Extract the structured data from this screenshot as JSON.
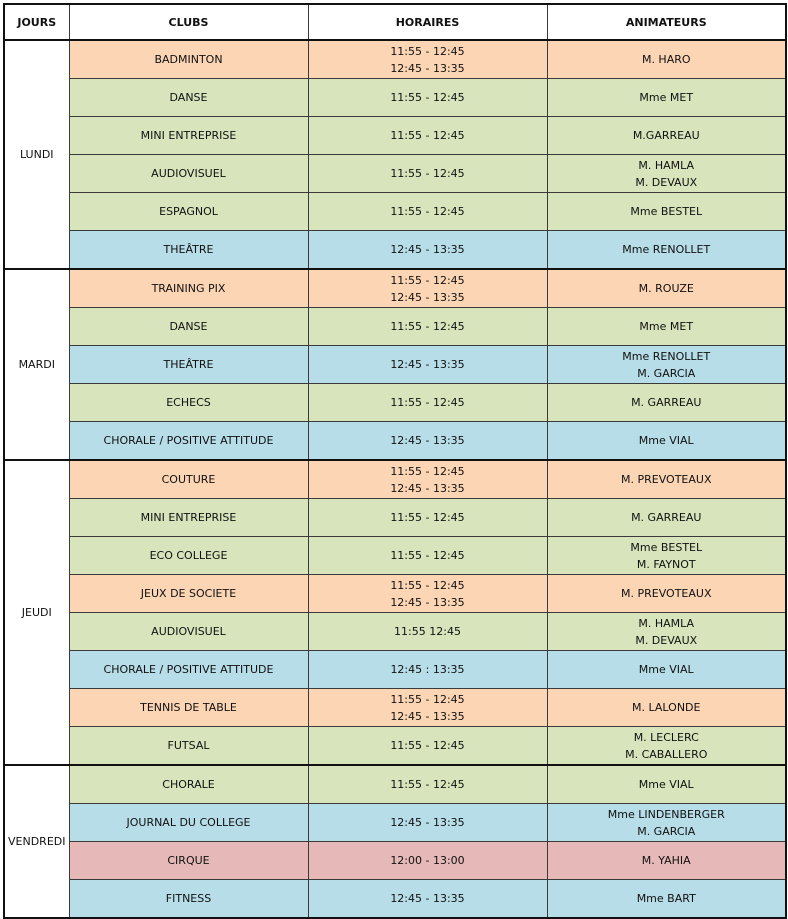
{
  "headers": {
    "jours": "JOURS",
    "clubs": "CLUBS",
    "horaires": "HORAIRES",
    "animateurs": "ANIMATEURS"
  },
  "days": [
    {
      "name": "LUNDI",
      "rows": [
        {
          "club": "BADMINTON",
          "horaires": [
            "11:55 - 12:45",
            "12:45 - 13:35"
          ],
          "animateurs": [
            "M. HARO"
          ],
          "color": "orange"
        },
        {
          "club": "DANSE",
          "horaires": [
            "11:55 - 12:45"
          ],
          "animateurs": [
            "Mme MET"
          ],
          "color": "green"
        },
        {
          "club": "MINI ENTREPRISE",
          "horaires": [
            "11:55 - 12:45"
          ],
          "animateurs": [
            "M.GARREAU"
          ],
          "color": "green"
        },
        {
          "club": "AUDIOVISUEL",
          "horaires": [
            "11:55 - 12:45"
          ],
          "animateurs": [
            "M. HAMLA",
            "M. DEVAUX"
          ],
          "color": "green"
        },
        {
          "club": "ESPAGNOL",
          "horaires": [
            "11:55 - 12:45"
          ],
          "animateurs": [
            "Mme BESTEL"
          ],
          "color": "green"
        },
        {
          "club": "THEÂTRE",
          "horaires": [
            "12:45 - 13:35"
          ],
          "animateurs": [
            "Mme RENOLLET"
          ],
          "color": "blue"
        }
      ]
    },
    {
      "name": "MARDI",
      "rows": [
        {
          "club": "TRAINING PIX",
          "horaires": [
            "11:55 - 12:45",
            "12:45 - 13:35"
          ],
          "animateurs": [
            "M. ROUZE"
          ],
          "color": "orange"
        },
        {
          "club": "DANSE",
          "horaires": [
            "11:55 - 12:45"
          ],
          "animateurs": [
            "Mme MET"
          ],
          "color": "green"
        },
        {
          "club": "THEÂTRE",
          "horaires": [
            "12:45 - 13:35"
          ],
          "animateurs": [
            "Mme RENOLLET",
            "M. GARCIA"
          ],
          "color": "blue"
        },
        {
          "club": "ECHECS",
          "horaires": [
            "11:55 - 12:45"
          ],
          "animateurs": [
            "M. GARREAU"
          ],
          "color": "green"
        },
        {
          "club": "CHORALE / POSITIVE ATTITUDE",
          "horaires": [
            "12:45 - 13:35"
          ],
          "animateurs": [
            "Mme VIAL"
          ],
          "color": "blue"
        }
      ]
    },
    {
      "name": "JEUDI",
      "rows": [
        {
          "club": "COUTURE",
          "horaires": [
            "11:55 - 12:45",
            "12:45 - 13:35"
          ],
          "animateurs": [
            "M. PREVOTEAUX"
          ],
          "color": "orange"
        },
        {
          "club": "MINI ENTREPRISE",
          "horaires": [
            "11:55 - 12:45"
          ],
          "animateurs": [
            "M. GARREAU"
          ],
          "color": "green"
        },
        {
          "club": "ECO COLLEGE",
          "horaires": [
            "11:55 - 12:45"
          ],
          "animateurs": [
            "Mme BESTEL",
            "M. FAYNOT"
          ],
          "color": "green"
        },
        {
          "club": "JEUX DE SOCIETE",
          "horaires": [
            "11:55 - 12:45",
            "12:45 - 13:35"
          ],
          "animateurs": [
            "M. PREVOTEAUX"
          ],
          "color": "orange"
        },
        {
          "club": "AUDIOVISUEL",
          "horaires": [
            "11:55  12:45"
          ],
          "animateurs": [
            "M. HAMLA",
            "M. DEVAUX"
          ],
          "color": "green"
        },
        {
          "club": "CHORALE / POSITIVE ATTITUDE",
          "horaires": [
            "12:45 : 13:35"
          ],
          "animateurs": [
            "Mme VIAL"
          ],
          "color": "blue"
        },
        {
          "club": "TENNIS DE TABLE",
          "horaires": [
            "11:55 - 12:45",
            "12:45 - 13:35"
          ],
          "animateurs": [
            "M. LALONDE"
          ],
          "color": "orange"
        },
        {
          "club": "FUTSAL",
          "horaires": [
            "11:55 - 12:45"
          ],
          "animateurs": [
            "M. LECLERC",
            "M. CABALLERO"
          ],
          "color": "green"
        }
      ]
    },
    {
      "name": "VENDREDI",
      "rows": [
        {
          "club": "CHORALE",
          "horaires": [
            "11:55 - 12:45"
          ],
          "animateurs": [
            "Mme VIAL"
          ],
          "color": "green"
        },
        {
          "club": "JOURNAL DU COLLEGE",
          "horaires": [
            "12:45 - 13:35"
          ],
          "animateurs": [
            "Mme LINDENBERGER",
            "M. GARCIA"
          ],
          "color": "blue"
        },
        {
          "club": "CIRQUE",
          "horaires": [
            "12:00 - 13:00"
          ],
          "animateurs": [
            "M. YAHIA"
          ],
          "color": "red"
        },
        {
          "club": "FITNESS",
          "horaires": [
            "12:45 - 13:35"
          ],
          "animateurs": [
            "Mme BART"
          ],
          "color": "blue"
        }
      ]
    }
  ]
}
